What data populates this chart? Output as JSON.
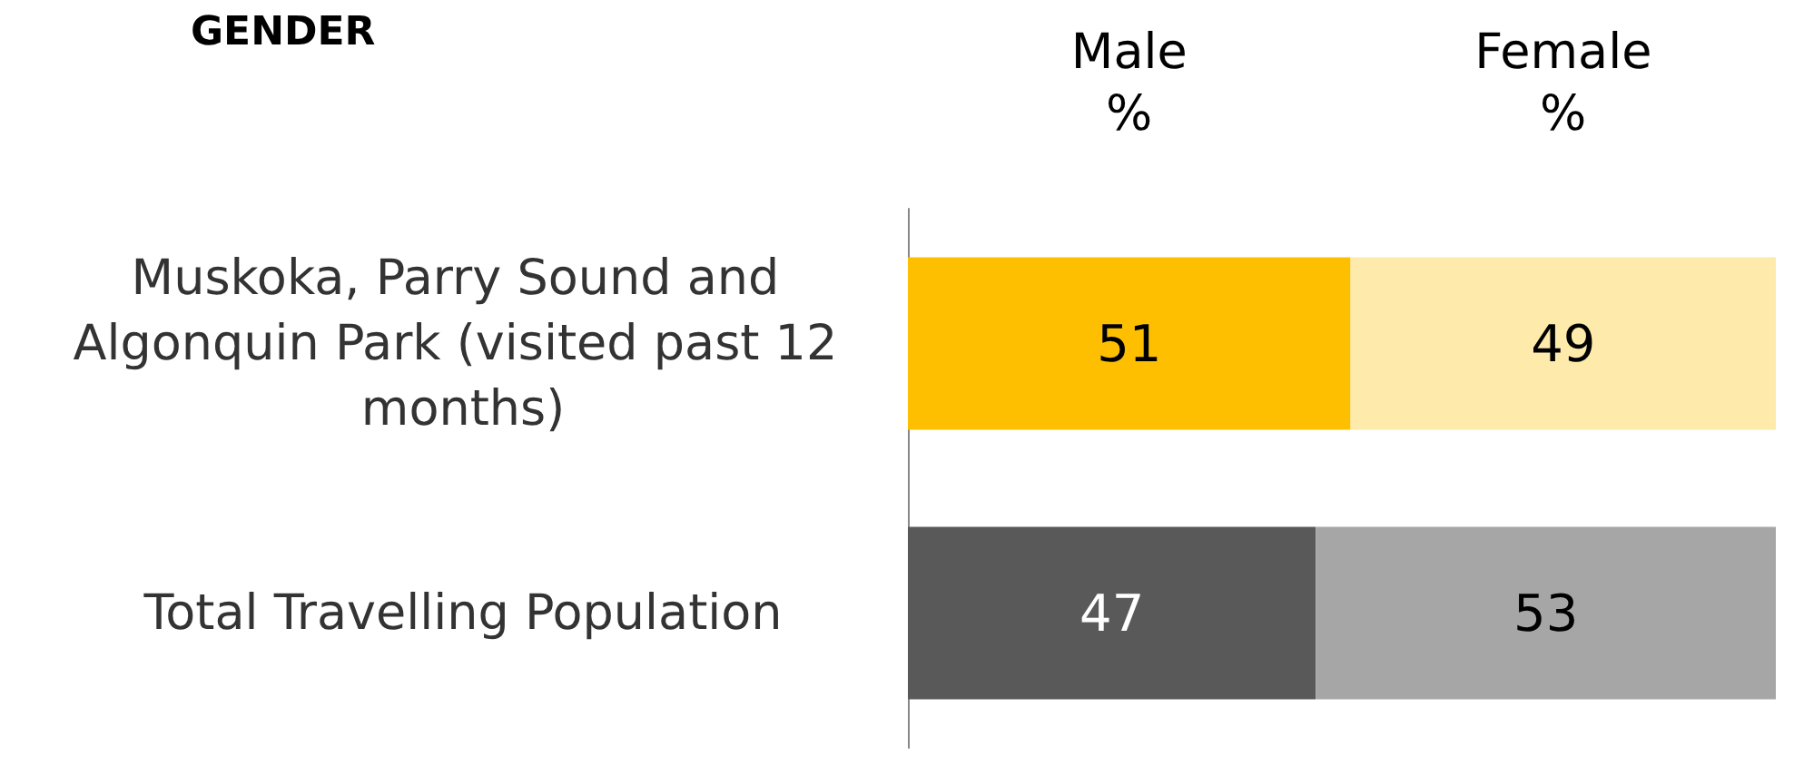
{
  "chart_data": {
    "type": "bar",
    "orientation": "horizontal",
    "stacked": true,
    "title": "GENDER",
    "categories": [
      "Muskoka, Parry Sound and Algonquin Park (visited past 12 months)",
      "Total Travelling Population"
    ],
    "series": [
      {
        "name": "Male\n%",
        "colors": [
          "#fdbf00",
          "#595959"
        ],
        "values": [
          51,
          47
        ]
      },
      {
        "name": "Female\n%",
        "colors": [
          "#feeaaa",
          "#a6a6a6"
        ],
        "values": [
          49,
          53
        ]
      }
    ],
    "xlim": [
      0,
      100
    ],
    "data_labels": true,
    "legend": false,
    "grid": false
  }
}
